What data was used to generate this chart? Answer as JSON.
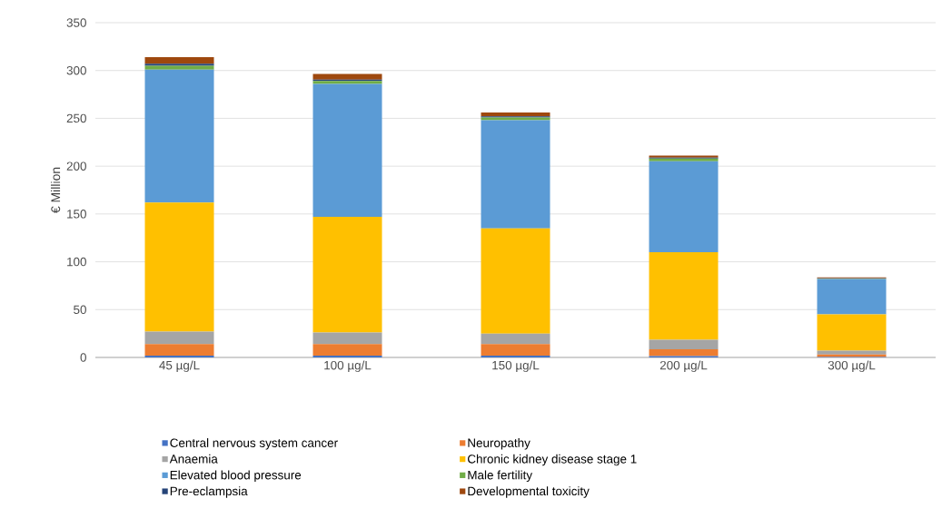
{
  "chart_data": {
    "type": "bar",
    "stacked": true,
    "ylabel": "€ Million",
    "categories": [
      "45 µg/L",
      "100 µg/L",
      "150 µg/L",
      "200 µg/L",
      "300 µg/L"
    ],
    "series": [
      {
        "name": "Central nervous system cancer",
        "color": "#4472c4",
        "values": [
          2,
          2,
          2,
          1.5,
          0.5
        ]
      },
      {
        "name": "Neuropathy",
        "color": "#ed7d31",
        "values": [
          12,
          12,
          12,
          7,
          2.5
        ]
      },
      {
        "name": "Anaemia",
        "color": "#a5a5a5",
        "values": [
          13,
          12,
          11,
          10,
          4
        ]
      },
      {
        "name": "Chronic kidney disease stage 1",
        "color": "#ffc000",
        "values": [
          135,
          121,
          110,
          91.5,
          38
        ]
      },
      {
        "name": "Elevated blood pressure",
        "color": "#5b9bd5",
        "values": [
          139,
          139,
          113,
          95,
          37
        ]
      },
      {
        "name": "Male fertility",
        "color": "#70ad47",
        "values": [
          4,
          3,
          3,
          3,
          0.5
        ]
      },
      {
        "name": "Pre-eclampsia",
        "color": "#264478",
        "values": [
          2,
          1.5,
          1,
          1,
          0.3
        ]
      },
      {
        "name": "Developmental toxicity",
        "color": "#9e480e",
        "values": [
          7,
          6,
          4,
          2,
          1
        ]
      }
    ],
    "ylim": [
      0,
      350
    ],
    "yticks": [
      0,
      50,
      100,
      150,
      200,
      250,
      300,
      350
    ],
    "grid": "y",
    "legend": "bottom"
  }
}
